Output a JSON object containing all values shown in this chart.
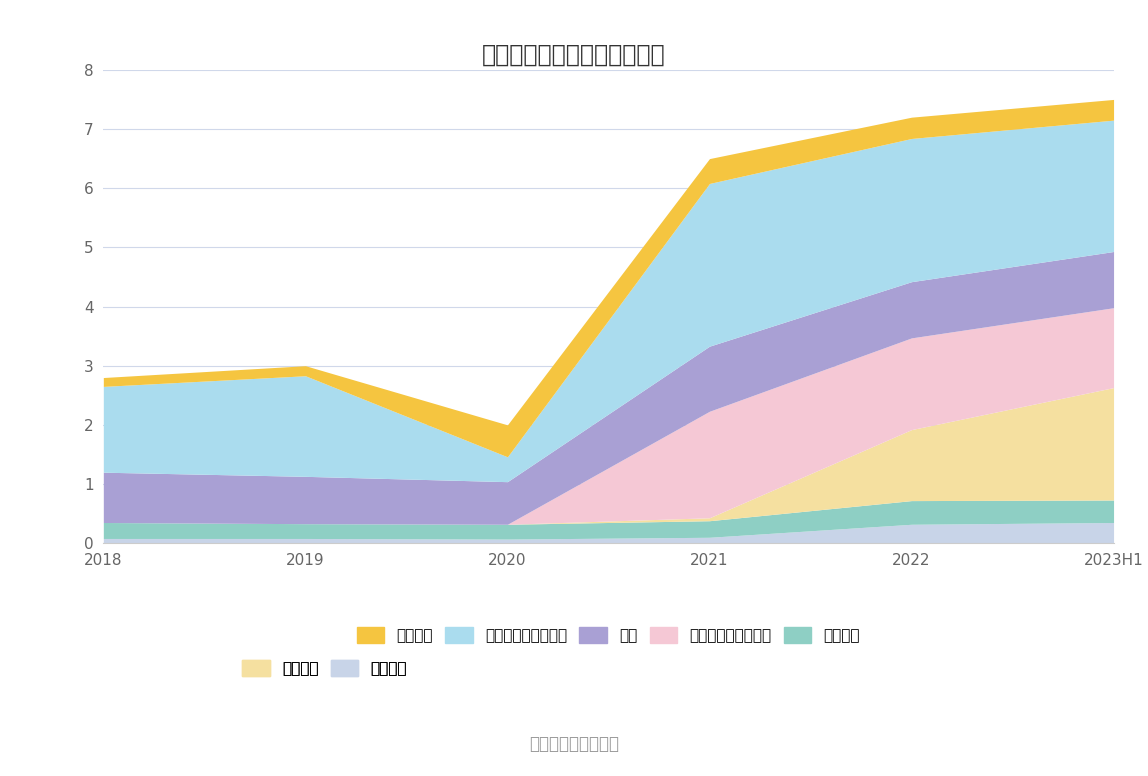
{
  "title": "历年主要资产堆积图（亿元）",
  "source": "数据来源：恒生聚源",
  "x_labels": [
    "2018",
    "2019",
    "2020",
    "2021",
    "2022",
    "2023H1"
  ],
  "series": [
    {
      "name": "无形资产",
      "color": "#c8d4e8",
      "values": [
        0.08,
        0.08,
        0.07,
        0.1,
        0.32,
        0.35
      ]
    },
    {
      "name": "固定资产",
      "color": "#8ecfc4",
      "values": [
        0.27,
        0.25,
        0.25,
        0.28,
        0.4,
        0.38
      ]
    },
    {
      "name": "在建工程",
      "color": "#f5e0a0",
      "values": [
        0.0,
        0.0,
        0.0,
        0.05,
        1.2,
        1.9
      ]
    },
    {
      "name": "交易性金融资产合计",
      "color": "#f5c8d5",
      "values": [
        0.0,
        0.0,
        0.0,
        1.8,
        1.55,
        1.35
      ]
    },
    {
      "name": "存货",
      "color": "#a9a0d4",
      "values": [
        0.85,
        0.8,
        0.72,
        1.1,
        0.95,
        0.95
      ]
    },
    {
      "name": "应收账款及应收票据",
      "color": "#aadcee",
      "values": [
        1.45,
        1.7,
        0.42,
        2.75,
        2.42,
        2.22
      ]
    },
    {
      "name": "货币资金",
      "color": "#f5c540",
      "values": [
        0.15,
        0.17,
        0.54,
        0.42,
        0.36,
        0.35
      ]
    }
  ],
  "ylim": [
    0,
    8
  ],
  "yticks": [
    0,
    1,
    2,
    3,
    4,
    5,
    6,
    7,
    8
  ],
  "background_color": "#ffffff",
  "grid_color": "#d0d8ea",
  "title_fontsize": 17,
  "legend_fontsize": 11,
  "tick_fontsize": 11,
  "source_fontsize": 12
}
